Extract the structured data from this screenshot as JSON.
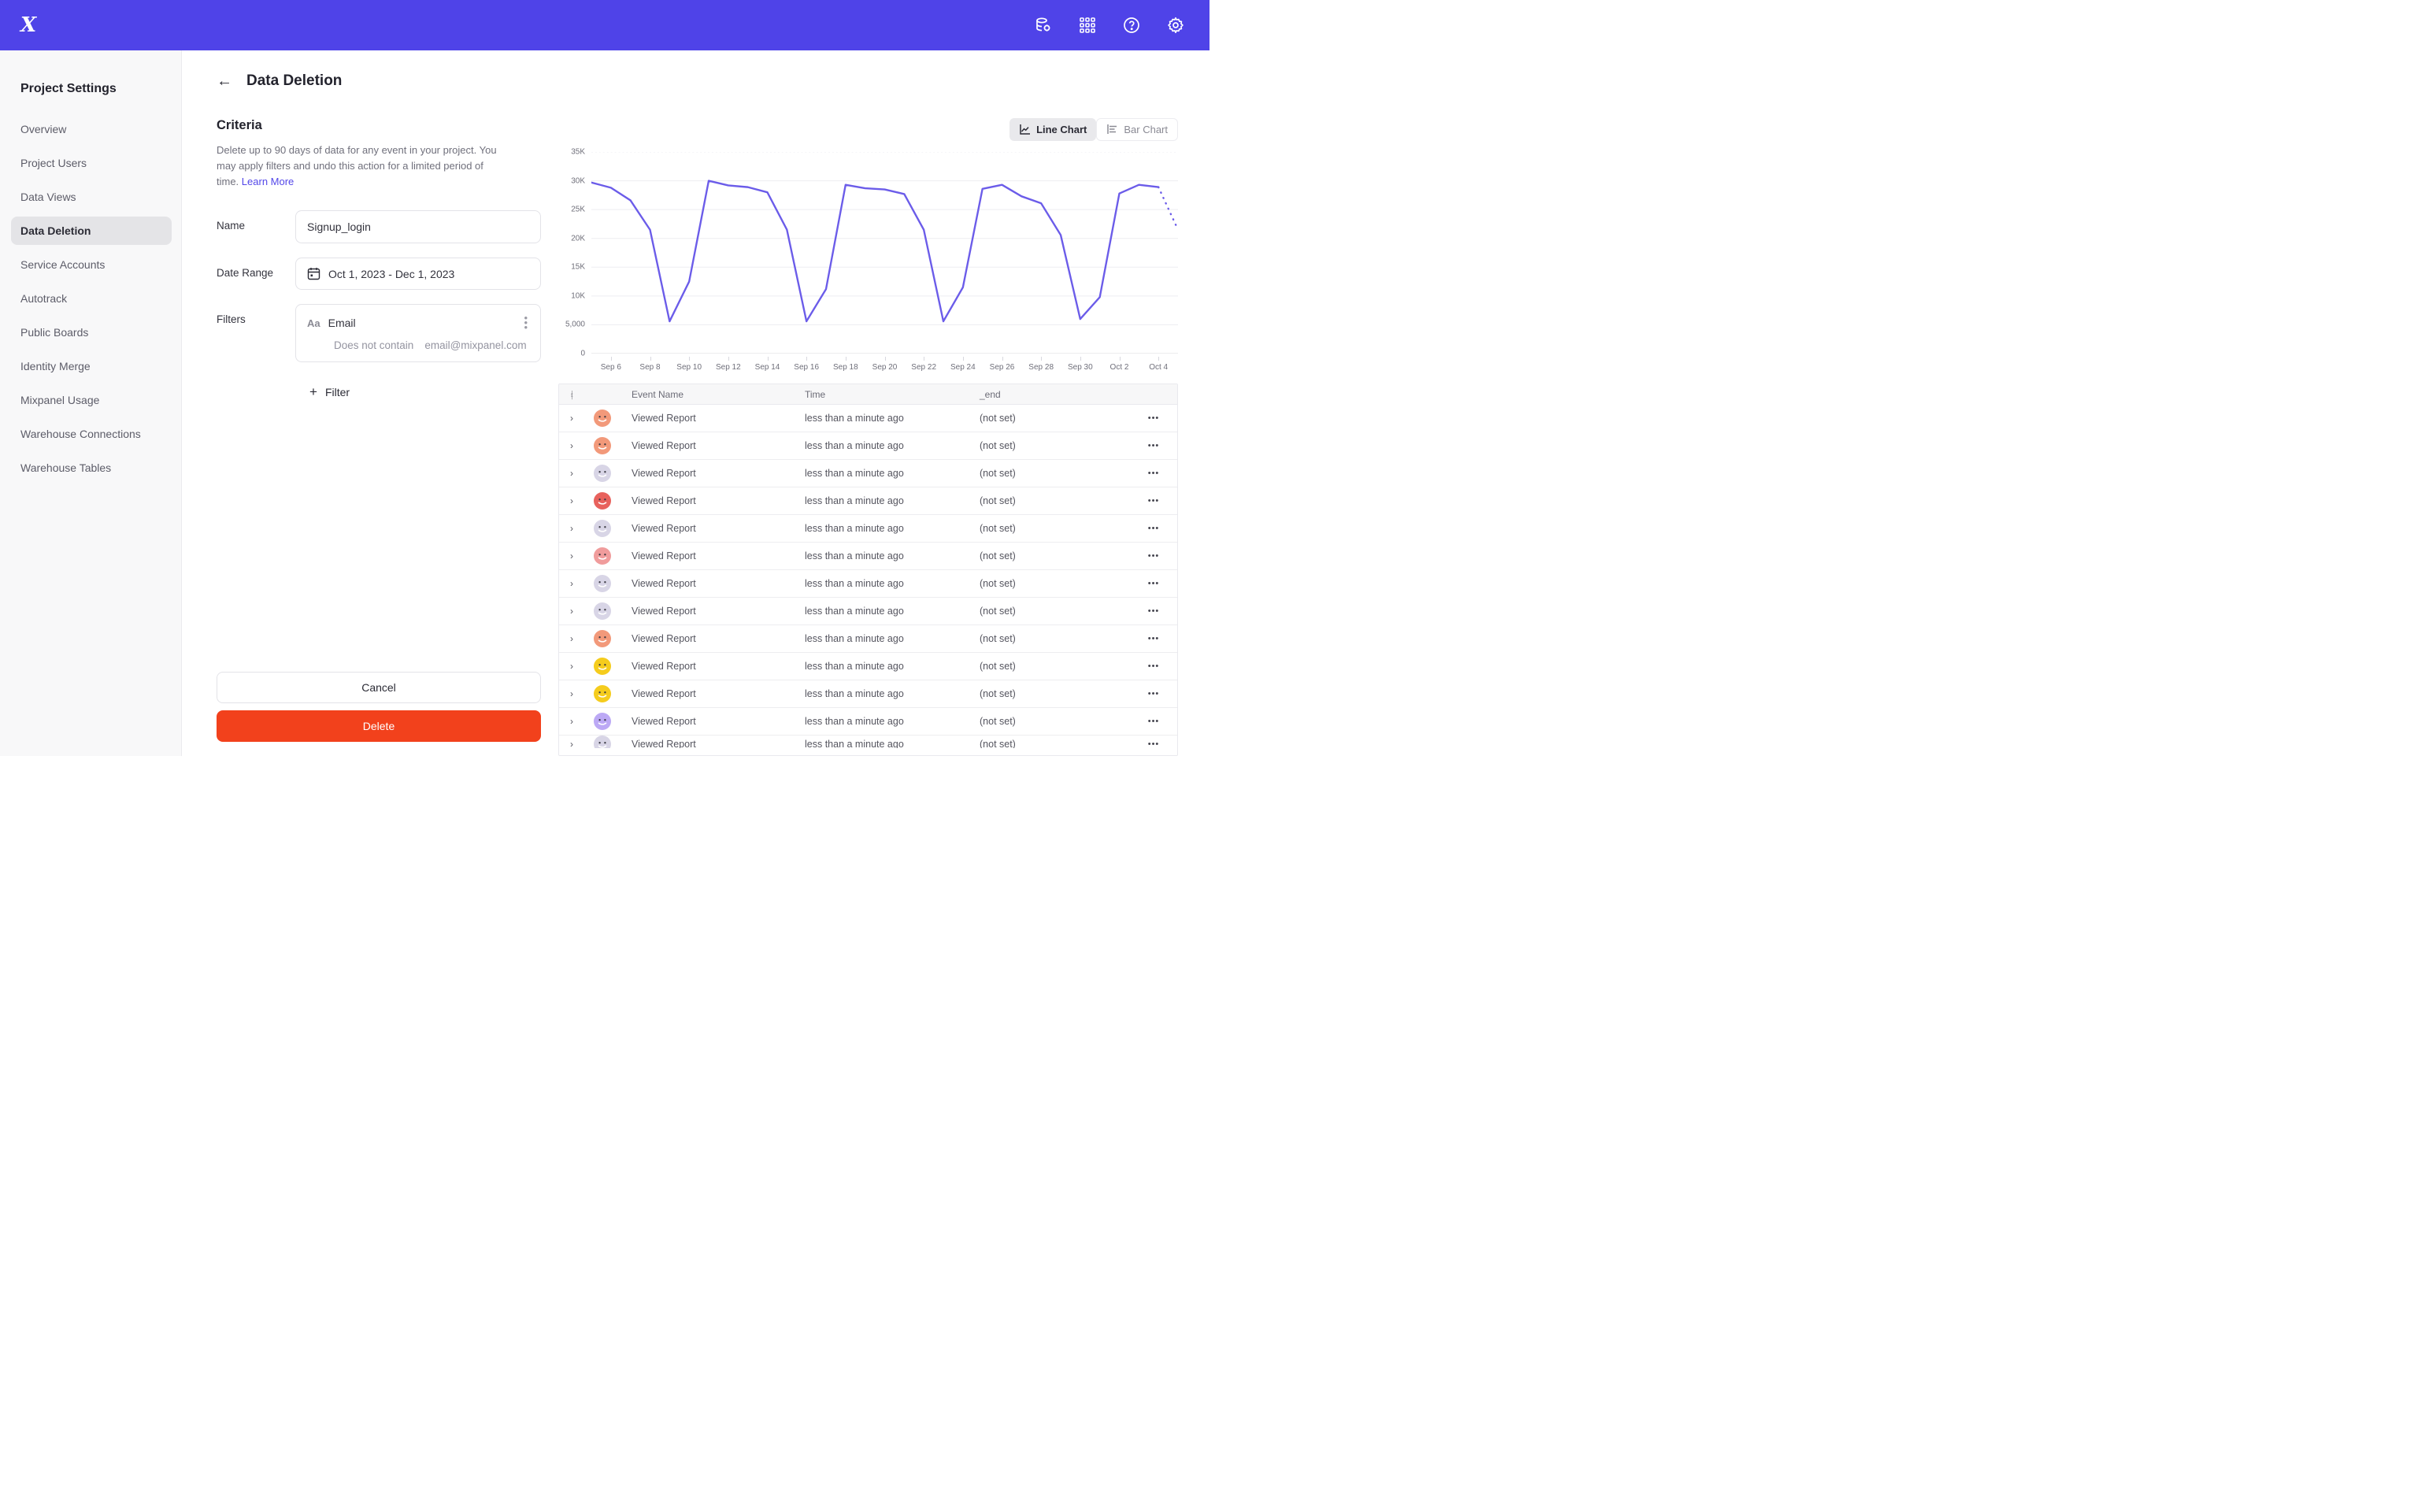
{
  "topbar": {
    "logo_glyph": "X",
    "icons": [
      "data-management-icon",
      "apps-grid-icon",
      "help-icon",
      "settings-gear-icon"
    ]
  },
  "sidebar": {
    "title": "Project Settings",
    "items": [
      {
        "label": "Overview",
        "active": false
      },
      {
        "label": "Project Users",
        "active": false
      },
      {
        "label": "Data Views",
        "active": false
      },
      {
        "label": "Data Deletion",
        "active": true
      },
      {
        "label": "Service Accounts",
        "active": false
      },
      {
        "label": "Autotrack",
        "active": false
      },
      {
        "label": "Public Boards",
        "active": false
      },
      {
        "label": "Identity Merge",
        "active": false
      },
      {
        "label": "Mixpanel Usage",
        "active": false
      },
      {
        "label": "Warehouse Connections",
        "active": false
      },
      {
        "label": "Warehouse Tables",
        "active": false
      }
    ]
  },
  "header": {
    "back_glyph": "←",
    "title": "Data Deletion"
  },
  "criteria": {
    "title": "Criteria",
    "description": "Delete up to 90 days of data for any event in your project. You may apply filters and undo this action for a limited period of time.",
    "learn_more": "Learn More",
    "name_label": "Name",
    "name_value": "Signup_login",
    "date_label": "Date Range",
    "date_value": "Oct 1, 2023 - Dec 1, 2023",
    "filters_label": "Filters",
    "filter_type_indicator": "Aa",
    "filter_property": "Email",
    "filter_operator": "Does not contain",
    "filter_value": "email@mixpanel.com",
    "add_filter_label": "Filter",
    "plus_glyph": "+"
  },
  "buttons": {
    "cancel": "Cancel",
    "delete": "Delete",
    "delete_color": "#F2411C"
  },
  "chart_toggle": {
    "line_label": "Line Chart",
    "bar_label": "Bar Chart",
    "active": "line"
  },
  "chart_data": {
    "type": "line",
    "title": "",
    "xlabel": "",
    "ylabel": "",
    "line_color": "#6B5CE9",
    "grid": true,
    "legend": "none",
    "ylim": [
      0,
      35000
    ],
    "y_tick_values": [
      0,
      5000,
      10000,
      15000,
      20000,
      25000,
      30000,
      35000
    ],
    "y_tick_labels": [
      "0",
      "5,000",
      "10K",
      "15K",
      "20K",
      "25K",
      "30K",
      "35K"
    ],
    "x": [
      "Sep 5",
      "Sep 6",
      "Sep 7",
      "Sep 8",
      "Sep 9",
      "Sep 10",
      "Sep 11",
      "Sep 12",
      "Sep 13",
      "Sep 14",
      "Sep 15",
      "Sep 16",
      "Sep 17",
      "Sep 18",
      "Sep 19",
      "Sep 20",
      "Sep 21",
      "Sep 22",
      "Sep 23",
      "Sep 24",
      "Sep 25",
      "Sep 26",
      "Sep 27",
      "Sep 28",
      "Sep 29",
      "Sep 30",
      "Oct 1",
      "Oct 2",
      "Oct 3",
      "Oct 4",
      "Oct 5"
    ],
    "x_tick_every": 2,
    "x_tick_start_index": 1,
    "series": [
      {
        "name": "events",
        "values": [
          29700,
          28800,
          26600,
          21500,
          5600,
          12500,
          30000,
          29200,
          28900,
          28000,
          21500,
          5600,
          11200,
          29300,
          28700,
          28500,
          27700,
          21500,
          5600,
          11500,
          28600,
          29300,
          27300,
          26100,
          20600,
          6000,
          9800,
          27800,
          29300,
          28900,
          21500
        ],
        "dashed_from_index": 29
      }
    ]
  },
  "table": {
    "headers": [
      "Event Name",
      "Time",
      "_end"
    ],
    "row_menu_glyph": "•••",
    "rows": [
      {
        "event": "Viewed Report",
        "time": "less than a minute ago",
        "end": "(not set)",
        "avatar_color": "#F2997A",
        "partial": false
      },
      {
        "event": "Viewed Report",
        "time": "less than a minute ago",
        "end": "(not set)",
        "avatar_color": "#F2997A",
        "partial": false
      },
      {
        "event": "Viewed Report",
        "time": "less than a minute ago",
        "end": "(not set)",
        "avatar_color": "#D8D5E6",
        "partial": false
      },
      {
        "event": "Viewed Report",
        "time": "less than a minute ago",
        "end": "(not set)",
        "avatar_color": "#E8625D",
        "partial": false
      },
      {
        "event": "Viewed Report",
        "time": "less than a minute ago",
        "end": "(not set)",
        "avatar_color": "#D8D5E6",
        "partial": false
      },
      {
        "event": "Viewed Report",
        "time": "less than a minute ago",
        "end": "(not set)",
        "avatar_color": "#F09C9C",
        "partial": false
      },
      {
        "event": "Viewed Report",
        "time": "less than a minute ago",
        "end": "(not set)",
        "avatar_color": "#D8D5E6",
        "partial": false
      },
      {
        "event": "Viewed Report",
        "time": "less than a minute ago",
        "end": "(not set)",
        "avatar_color": "#D8D5E6",
        "partial": false
      },
      {
        "event": "Viewed Report",
        "time": "less than a minute ago",
        "end": "(not set)",
        "avatar_color": "#F2997A",
        "partial": false
      },
      {
        "event": "Viewed Report",
        "time": "less than a minute ago",
        "end": "(not set)",
        "avatar_color": "#F5CC1D",
        "partial": false
      },
      {
        "event": "Viewed Report",
        "time": "less than a minute ago",
        "end": "(not set)",
        "avatar_color": "#F5CC1D",
        "partial": false
      },
      {
        "event": "Viewed Report",
        "time": "less than a minute ago",
        "end": "(not set)",
        "avatar_color": "#BCA9F5",
        "partial": false
      },
      {
        "event": "Viewed Report",
        "time": "less than a minute ago",
        "end": "(not set)",
        "avatar_color": "#D8D5E6",
        "partial": true
      }
    ]
  }
}
